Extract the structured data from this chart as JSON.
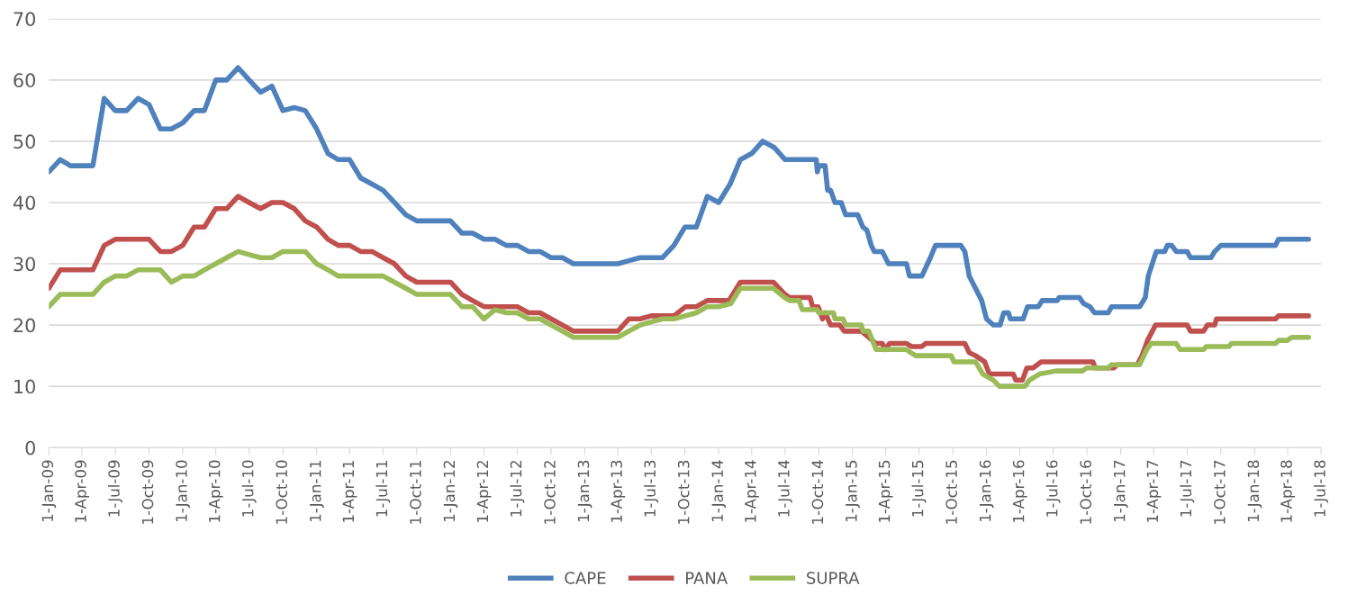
{
  "chart_data": {
    "type": "line",
    "series": [
      {
        "name": "CAPE",
        "color": "#4f81bd",
        "x": [
          "2009-01",
          "2009-02",
          "2009-03",
          "2009-04",
          "2009-05",
          "2009-06",
          "2009-07",
          "2009-08",
          "2009-09",
          "2009-10",
          "2009-11",
          "2009-12",
          "2010-01",
          "2010-02",
          "2010-03",
          "2010-04",
          "2010-05",
          "2010-06",
          "2010-07",
          "2010-08",
          "2010-09",
          "2010-10",
          "2010-11",
          "2010-12",
          "2011-01",
          "2011-02",
          "2011-03",
          "2011-04",
          "2011-05",
          "2011-06",
          "2011-07",
          "2011-08",
          "2011-09",
          "2011-10",
          "2011-11",
          "2011-12",
          "2012-01",
          "2012-02",
          "2012-03",
          "2012-04",
          "2012-05",
          "2012-06",
          "2012-07",
          "2012-08",
          "2012-09",
          "2012-10",
          "2012-11",
          "2012-12",
          "2013-01",
          "2013-02",
          "2013-03",
          "2013-04",
          "2013-05",
          "2013-06",
          "2013-07",
          "2013-08",
          "2013-09",
          "2013-10",
          "2013-11",
          "2013-12",
          "2014-01",
          "2014-02",
          "2014-03",
          "2014-04",
          "2014-05",
          "2014-06",
          "2014-07",
          "2014-08",
          "2014-09",
          "2014-09-24",
          "2014-09-27",
          "2014-10-01",
          "2014-10-18",
          "2014-10-25",
          "2014-11-02",
          "2014-11-14",
          "2014-12-01",
          "2014-12-13",
          "2015-01-15",
          "2015-01-29",
          "2015-02-09",
          "2015-02-21",
          "2015-03-01",
          "2015-03-23",
          "2015-04-09",
          "2015-05-28",
          "2015-06-05",
          "2015-07-09",
          "2015-08-01",
          "2015-08-15",
          "2015-10-23",
          "2015-11-03",
          "2015-11-15",
          "2015-12-02",
          "2015-12-19",
          "2016-01-01",
          "2016-01-20",
          "2016-02-07",
          "2016-02-17",
          "2016-03-01",
          "2016-03-06",
          "2016-04-10",
          "2016-04-22",
          "2016-05-21",
          "2016-06-01",
          "2016-07-12",
          "2016-07-17",
          "2016-09-10",
          "2016-09-22",
          "2016-10-09",
          "2016-10-21",
          "2016-11-28",
          "2016-12-07",
          "2017-02-22",
          "2017-03-09",
          "2017-03-17",
          "2017-04-08",
          "2017-05-01",
          "2017-05-08",
          "2017-05-20",
          "2017-06-01",
          "2017-07-01",
          "2017-07-10",
          "2017-09-04",
          "2017-09-14",
          "2017-10-01",
          "2018-02-27",
          "2018-03-07",
          "2018-05-28"
        ],
        "values": [
          45,
          47,
          46,
          46,
          46,
          57,
          55,
          55,
          57,
          56,
          52,
          52,
          53,
          55,
          55,
          60,
          60,
          62,
          60,
          58,
          59,
          55,
          55.5,
          55,
          52,
          48,
          47,
          47,
          44,
          43,
          42,
          40,
          38,
          37,
          37,
          37,
          37,
          35,
          35,
          34,
          34,
          33,
          33,
          32,
          32,
          31,
          31,
          30,
          30,
          30,
          30,
          30,
          30.5,
          31,
          31,
          31,
          33,
          36,
          36,
          41,
          40,
          43,
          47,
          48,
          50,
          49,
          47,
          47,
          47,
          47,
          45,
          46,
          46,
          42,
          42,
          40,
          40,
          38,
          38,
          36,
          35.5,
          33,
          32,
          32,
          30,
          30,
          28,
          28,
          31,
          33,
          33,
          32,
          28,
          26,
          24,
          21,
          20,
          20,
          22,
          22,
          21,
          21,
          23,
          23,
          24,
          24,
          24.5,
          24.5,
          23.5,
          23,
          22,
          22,
          23,
          23,
          24.5,
          28,
          32,
          32,
          33,
          33,
          32,
          32,
          31,
          31,
          32,
          33,
          33,
          34,
          34
        ]
      },
      {
        "name": "PANA",
        "color": "#c0504d",
        "x": [
          "2009-01",
          "2009-02",
          "2009-03",
          "2009-04",
          "2009-05",
          "2009-06",
          "2009-07",
          "2009-08",
          "2009-09",
          "2009-10",
          "2009-11",
          "2009-12",
          "2010-01",
          "2010-02",
          "2010-03",
          "2010-04",
          "2010-05",
          "2010-06",
          "2010-07",
          "2010-08",
          "2010-09",
          "2010-10",
          "2010-11",
          "2010-12",
          "2011-01",
          "2011-02",
          "2011-03",
          "2011-04",
          "2011-05",
          "2011-06",
          "2011-07",
          "2011-08",
          "2011-09",
          "2011-10",
          "2011-11",
          "2011-12",
          "2012-01",
          "2012-02",
          "2012-03",
          "2012-04",
          "2012-05",
          "2012-06",
          "2012-07",
          "2012-08",
          "2012-09",
          "2012-10",
          "2012-11",
          "2012-12",
          "2013-01",
          "2013-02",
          "2013-03",
          "2013-04",
          "2013-05",
          "2013-06",
          "2013-07",
          "2013-08",
          "2013-09",
          "2013-10-03",
          "2013-11-01",
          "2013-12-01",
          "2014-01-29",
          "2014-03-01",
          "2014-05-30",
          "2014-07-01",
          "2014-07-13",
          "2014-09-07",
          "2014-09-14",
          "2014-09-29",
          "2014-10-11",
          "2014-10-18",
          "2014-11-02",
          "2014-11-27",
          "2014-12-09",
          "2015-01-25",
          "2015-03-06",
          "2015-03-23",
          "2015-03-30",
          "2015-04-12",
          "2015-05-28",
          "2015-06-10",
          "2015-07-09",
          "2015-07-19",
          "2015-11-03",
          "2015-11-15",
          "2015-12-02",
          "2015-12-27",
          "2016-01-09",
          "2016-03-14",
          "2016-03-21",
          "2016-04-08",
          "2016-04-20",
          "2016-05-07",
          "2016-05-29",
          "2016-10-17",
          "2016-10-24",
          "2016-12-13",
          "2016-12-22",
          "2017-02-15",
          "2017-02-28",
          "2017-03-15",
          "2017-04-06",
          "2017-07-01",
          "2017-07-10",
          "2017-08-15",
          "2017-08-25",
          "2017-09-14",
          "2017-09-19",
          "2018-02-27",
          "2018-03-07",
          "2018-05-28"
        ],
        "values": [
          26,
          29,
          29,
          29,
          29,
          33,
          34,
          34,
          34,
          34,
          32,
          32,
          33,
          36,
          36,
          39,
          39,
          41,
          40,
          39,
          40,
          40,
          39,
          37,
          36,
          34,
          33,
          33,
          32,
          32,
          31,
          30,
          28,
          27,
          27,
          27,
          27,
          25,
          24,
          23,
          23,
          23,
          23,
          22,
          22,
          21,
          20,
          19,
          19,
          19,
          19,
          19,
          21,
          21,
          21.5,
          21.5,
          21.5,
          23,
          23,
          24,
          24,
          27,
          27,
          25,
          24.5,
          24.5,
          23,
          23,
          21,
          22,
          20,
          20,
          19,
          19,
          17,
          17,
          16,
          17,
          17,
          16.5,
          16.5,
          17,
          17,
          15.5,
          15,
          14,
          12,
          12,
          11,
          11,
          13,
          13,
          14,
          14,
          13,
          13,
          13.5,
          13.5,
          15,
          17.5,
          20,
          20,
          19,
          19,
          20,
          20,
          21,
          21,
          21.5,
          21.5
        ]
      },
      {
        "name": "SUPRA",
        "color": "#9bbb59",
        "x": [
          "2009-01",
          "2009-02",
          "2009-03",
          "2009-04",
          "2009-05",
          "2009-06",
          "2009-07",
          "2009-08",
          "2009-09",
          "2009-10",
          "2009-11",
          "2009-12",
          "2010-01",
          "2010-02",
          "2010-03",
          "2010-04",
          "2010-05",
          "2010-06",
          "2010-07",
          "2010-08",
          "2010-09",
          "2010-10",
          "2010-11",
          "2010-12",
          "2011-01",
          "2011-02",
          "2011-03",
          "2011-04",
          "2011-05",
          "2011-06",
          "2011-07",
          "2011-08",
          "2011-09",
          "2011-10",
          "2011-11",
          "2011-12",
          "2012-01",
          "2012-02",
          "2012-03",
          "2012-04",
          "2012-05",
          "2012-06",
          "2012-07",
          "2012-08",
          "2012-09",
          "2012-10",
          "2012-11",
          "2012-12",
          "2013-01",
          "2013-02",
          "2013-03",
          "2013-04",
          "2013-05",
          "2013-06",
          "2013-07",
          "2013-08",
          "2013-09",
          "2013-11-01",
          "2013-12-01",
          "2014-01-02",
          "2014-02-03",
          "2014-03-01",
          "2014-05-30",
          "2014-06-29",
          "2014-07-13",
          "2014-08-08",
          "2014-08-17",
          "2014-09-26",
          "2014-10-01",
          "2014-11-10",
          "2014-11-14",
          "2014-12-06",
          "2014-12-13",
          "2015-01-25",
          "2015-01-29",
          "2015-02-14",
          "2015-03-06",
          "2015-05-28",
          "2015-06-08",
          "2015-06-22",
          "2015-09-27",
          "2015-10-04",
          "2015-12-02",
          "2015-12-22",
          "2016-01-20",
          "2016-02-05",
          "2016-04-15",
          "2016-04-27",
          "2016-05-24",
          "2016-07-08",
          "2016-09-18",
          "2016-09-30",
          "2016-11-28",
          "2016-12-06",
          "2017-02-21",
          "2017-03-13",
          "2017-03-25",
          "2017-06-01",
          "2017-06-12",
          "2017-08-15",
          "2017-08-22",
          "2017-10-23",
          "2017-10-30",
          "2018-02-27",
          "2018-03-07",
          "2018-03-31",
          "2018-04-12",
          "2018-05-28"
        ],
        "values": [
          23,
          25,
          25,
          25,
          25,
          27,
          28,
          28,
          29,
          29,
          29,
          27,
          28,
          28,
          29,
          30,
          31,
          32,
          31.5,
          31,
          31,
          32,
          32,
          32,
          30,
          29,
          28,
          28,
          28,
          28,
          28,
          27,
          26,
          25,
          25,
          25,
          25,
          23,
          23,
          21,
          22.5,
          22,
          22,
          21,
          21,
          20,
          19,
          18,
          18,
          18,
          18,
          18,
          19,
          20,
          20.5,
          21,
          21,
          22,
          23,
          23,
          23.5,
          26,
          26,
          24.5,
          24,
          24,
          22.5,
          22.5,
          22,
          22,
          21,
          21,
          20,
          20,
          19,
          19,
          16,
          16,
          15.5,
          15,
          15,
          14,
          14,
          12,
          11,
          10,
          10,
          11,
          12,
          12.5,
          12.5,
          13,
          13,
          13.5,
          13.5,
          16,
          17,
          17,
          16,
          16,
          16.5,
          16.5,
          17,
          17,
          17.5,
          17.5,
          18,
          18
        ]
      }
    ],
    "xlim": [
      "2009-01-01",
      "2018-07-01"
    ],
    "xticks": [
      {
        "value": "2009-01-01",
        "label": "1-Jan-09"
      },
      {
        "value": "2009-04-01",
        "label": "1-Apr-09"
      },
      {
        "value": "2009-07-01",
        "label": "1-Jul-09"
      },
      {
        "value": "2009-10-01",
        "label": "1-Oct-09"
      },
      {
        "value": "2010-01-01",
        "label": "1-Jan-10"
      },
      {
        "value": "2010-04-01",
        "label": "1-Apr-10"
      },
      {
        "value": "2010-07-01",
        "label": "1-Jul-10"
      },
      {
        "value": "2010-10-01",
        "label": "1-Oct-10"
      },
      {
        "value": "2011-01-01",
        "label": "1-Jan-11"
      },
      {
        "value": "2011-04-01",
        "label": "1-Apr-11"
      },
      {
        "value": "2011-07-01",
        "label": "1-Jul-11"
      },
      {
        "value": "2011-10-01",
        "label": "1-Oct-11"
      },
      {
        "value": "2012-01-01",
        "label": "1-Jan-12"
      },
      {
        "value": "2012-04-01",
        "label": "1-Apr-12"
      },
      {
        "value": "2012-07-01",
        "label": "1-Jul-12"
      },
      {
        "value": "2012-10-01",
        "label": "1-Oct-12"
      },
      {
        "value": "2013-01-01",
        "label": "1-Jan-13"
      },
      {
        "value": "2013-04-01",
        "label": "1-Apr-13"
      },
      {
        "value": "2013-07-01",
        "label": "1-Jul-13"
      },
      {
        "value": "2013-10-01",
        "label": "1-Oct-13"
      },
      {
        "value": "2014-01-01",
        "label": "1-Jan-14"
      },
      {
        "value": "2014-04-01",
        "label": "1-Apr-14"
      },
      {
        "value": "2014-07-01",
        "label": "1-Jul-14"
      },
      {
        "value": "2014-10-01",
        "label": "1-Oct-14"
      },
      {
        "value": "2015-01-01",
        "label": "1-Jan-15"
      },
      {
        "value": "2015-04-01",
        "label": "1-Apr-15"
      },
      {
        "value": "2015-07-01",
        "label": "1-Jul-15"
      },
      {
        "value": "2015-10-01",
        "label": "1-Oct-15"
      },
      {
        "value": "2016-01-01",
        "label": "1-Jan-16"
      },
      {
        "value": "2016-04-01",
        "label": "1-Apr-16"
      },
      {
        "value": "2016-07-01",
        "label": "1-Jul-16"
      },
      {
        "value": "2016-10-01",
        "label": "1-Oct-16"
      },
      {
        "value": "2017-01-01",
        "label": "1-Jan-17"
      },
      {
        "value": "2017-04-01",
        "label": "1-Apr-17"
      },
      {
        "value": "2017-07-01",
        "label": "1-Jul-17"
      },
      {
        "value": "2017-10-01",
        "label": "1-Oct-17"
      },
      {
        "value": "2018-01-01",
        "label": "1-Jan-18"
      },
      {
        "value": "2018-04-01",
        "label": "1-Apr-18"
      },
      {
        "value": "2018-07-01",
        "label": "1-Jul-18"
      }
    ],
    "ylim": [
      0,
      70
    ],
    "yticks": [
      0,
      10,
      20,
      30,
      40,
      50,
      60,
      70
    ],
    "grid": "y",
    "legend": "bottom",
    "marker": "none",
    "line_style": "solid"
  }
}
